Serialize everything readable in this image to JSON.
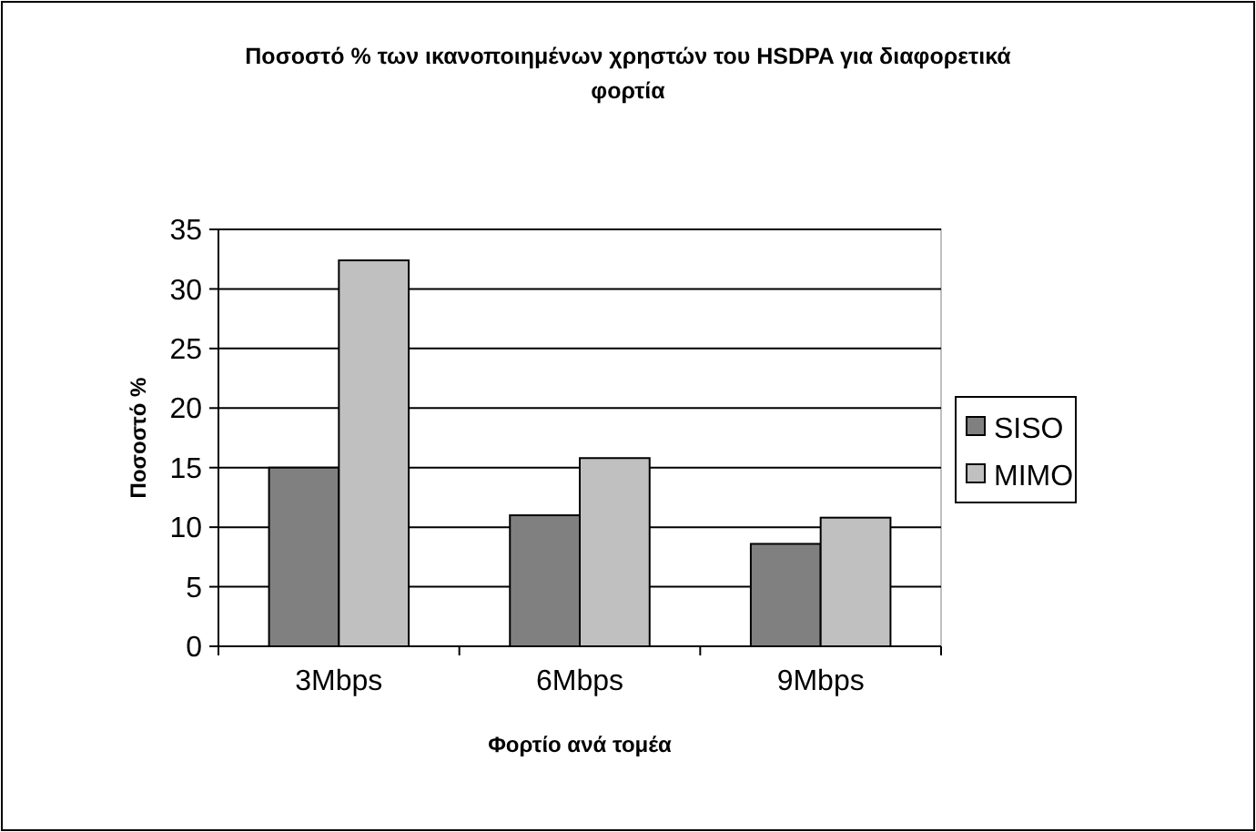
{
  "chart_data": {
    "type": "bar",
    "title": "Ποσοστό % των ικανοποιημένων χρηστών του HSDPA για διαφορετικά φορτία",
    "xlabel": "Φορτίο ανά τομέα",
    "ylabel": "Ποσοστό %",
    "categories": [
      "3Mbps",
      "6Mbps",
      "9Mbps"
    ],
    "series": [
      {
        "name": "SISO",
        "color": "#808080",
        "values": [
          15,
          11,
          8.6
        ]
      },
      {
        "name": "MIMO",
        "color": "#c0c0c0",
        "values": [
          32.4,
          15.8,
          10.8
        ]
      }
    ],
    "ylim": [
      0,
      35
    ],
    "yticks": [
      0,
      5,
      10,
      15,
      20,
      25,
      30,
      35
    ],
    "grid": "y",
    "legend": "right"
  }
}
